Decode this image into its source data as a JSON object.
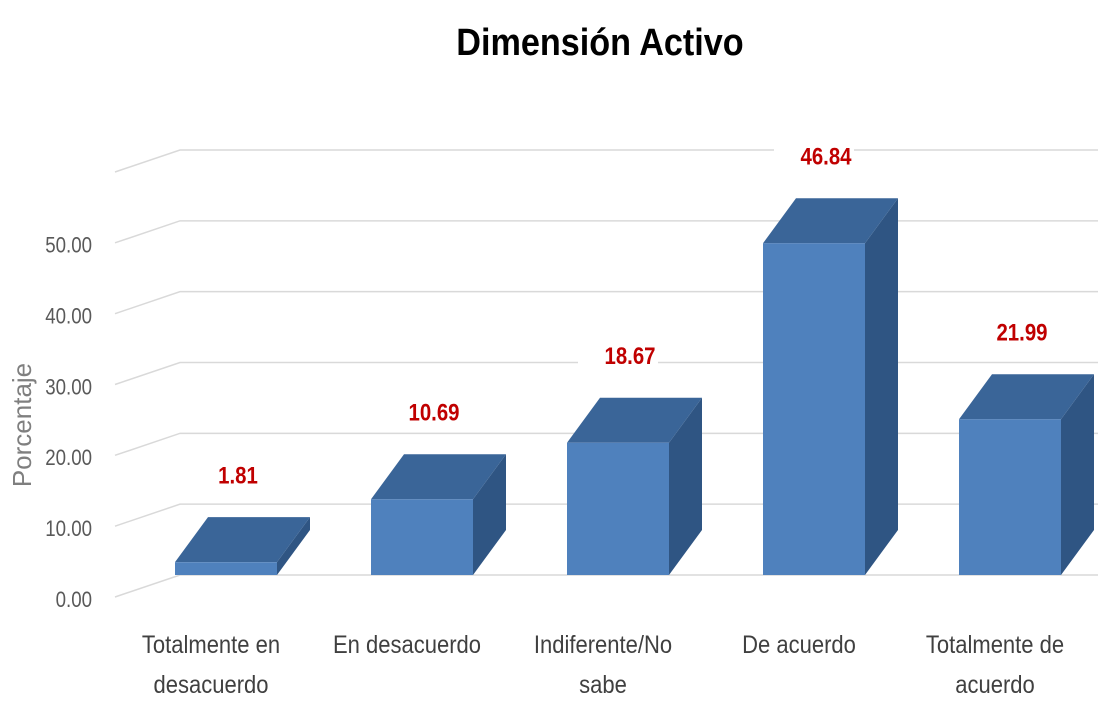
{
  "chart_data": {
    "type": "bar3d",
    "title": "Dimensión Activo",
    "y_label": "Porcentaje",
    "categories": [
      "Totalmente en desacuerdo",
      "En desacuerdo",
      "Indiferente/No sabe",
      "De acuerdo",
      "Totalmente de acuerdo"
    ],
    "values": [
      1.81,
      10.69,
      18.67,
      46.84,
      21.99
    ],
    "color": "#4f81bd",
    "label_color": "#c00000",
    "ylim": [
      0,
      60
    ],
    "yticks": [
      {
        "value": 0,
        "label": "0.00"
      },
      {
        "value": 10,
        "label": "10.00"
      },
      {
        "value": 20,
        "label": "20.00"
      },
      {
        "value": 30,
        "label": "30.00"
      },
      {
        "value": 40,
        "label": "40.00"
      },
      {
        "value": 50,
        "label": "50.00"
      }
    ],
    "grid": true
  }
}
